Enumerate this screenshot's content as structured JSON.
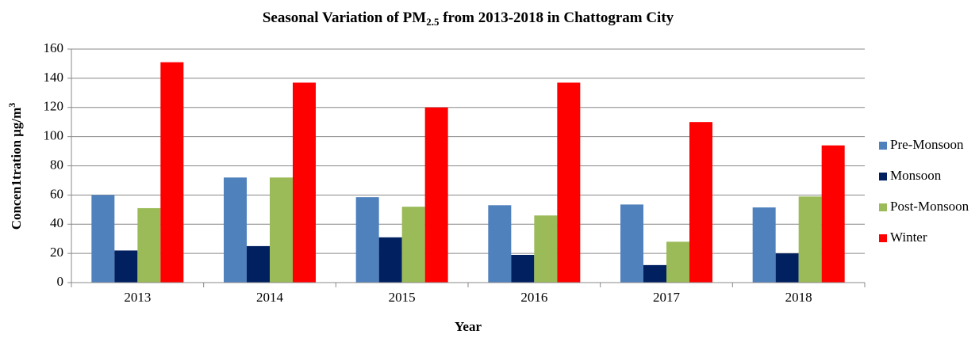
{
  "chart_data": {
    "type": "bar",
    "title": {
      "text": "Seasonal Variation of PM",
      "subscript": "2.5",
      "rest": " from 2013-2018 in Chattogram City"
    },
    "x_label": "Year",
    "y_label": {
      "text": "Concen1tration μg/m",
      "superscript": "3"
    },
    "categories": [
      "2013",
      "2014",
      "2015",
      "2016",
      "2017",
      "2018"
    ],
    "series": [
      {
        "name": "Pre-Monsoon",
        "color": "#4f81bd",
        "values": [
          60,
          72,
          58.5,
          53,
          53.5,
          51.5
        ]
      },
      {
        "name": "Monsoon",
        "color": "#002060",
        "values": [
          22,
          25,
          31,
          19,
          12,
          20
        ]
      },
      {
        "name": "Post-Monsoon",
        "color": "#9bbb59",
        "values": [
          51,
          72,
          52,
          46,
          28,
          59
        ]
      },
      {
        "name": "Winter",
        "color": "#ff0000",
        "values": [
          151,
          137,
          120,
          137,
          110,
          94
        ]
      }
    ],
    "ylim": [
      0,
      160
    ],
    "yticks": [
      0,
      20,
      40,
      60,
      80,
      100,
      120,
      140,
      160
    ],
    "grid": true,
    "legend": "right"
  }
}
